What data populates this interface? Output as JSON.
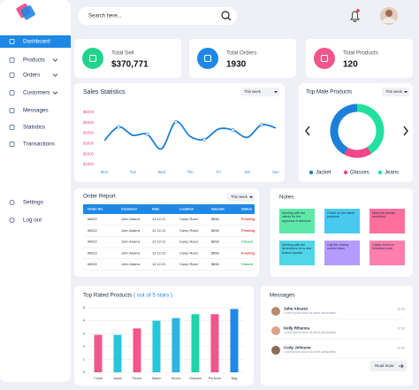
{
  "sidebar": {
    "items": [
      "Dashboard",
      "Products",
      "Orders",
      "Customers",
      "Messages",
      "Statistics",
      "Transactions"
    ],
    "bottom_items": [
      "Settings",
      "Log out"
    ]
  },
  "search_placeholder": "Search here...",
  "stats": [
    {
      "label": "Total Sell",
      "value": "$370,771",
      "color": "#21d48b"
    },
    {
      "label": "Total Orders",
      "value": "1930",
      "color": "#1e88e5"
    },
    {
      "label": "Total Products",
      "value": "120",
      "color": "#f0568c"
    }
  ],
  "sales_chart": {
    "type": "line",
    "title": "Sales  Statistics",
    "period": "This week",
    "categories": [
      "Mon",
      null,
      "Tue",
      null,
      "Wed",
      null,
      "Thu",
      null,
      "Fri",
      null,
      "Sat",
      null,
      "Sun"
    ],
    "values": [
      3300,
      4600,
      3800,
      3900,
      2500,
      5100,
      3700,
      3400,
      4400,
      4300,
      3600,
      4800,
      4500
    ],
    "color": "#1e7fd8",
    "ylim": [
      1000,
      6000
    ],
    "yticks": [
      {
        "value": 6000,
        "label": "$6000"
      },
      {
        "value": 5000,
        "label": "$5000"
      },
      {
        "value": 4000,
        "label": "$4000"
      },
      {
        "value": 3000,
        "label": "$3000"
      },
      {
        "value": 2000,
        "label": "$2000"
      },
      {
        "value": 1000,
        "label": "$1000"
      }
    ],
    "tick_color": "#e8467c",
    "grid": false
  },
  "products_chart": {
    "type": "pie",
    "title": "Top Male Products",
    "period": "This week",
    "categories": [
      "Jacket",
      "Glasses",
      "Jeans"
    ],
    "values": [
      42,
      17,
      41
    ],
    "colors": [
      "#1e7fd8",
      "#f0468a",
      "#21e0a0"
    ],
    "donut": true
  },
  "order_report": {
    "title": "Order Report",
    "period": "This week",
    "columns": [
      "Order No.",
      "Customer",
      "Date",
      "Location",
      "Amount",
      "Status"
    ],
    "rows": [
      [
        "#8522",
        "John Adams",
        "12-12-21",
        "Camp Road",
        "$658",
        "Pending"
      ],
      [
        "#8522",
        "John Adams",
        "12-12-21",
        "Camp Road",
        "$658",
        "Pending"
      ],
      [
        "#8522",
        "John Adams",
        "12-12-21",
        "Camp Road",
        "$658",
        "Closed"
      ],
      [
        "#8522",
        "John Adams",
        "12-12-21",
        "Camp Road",
        "$658",
        "Pending"
      ],
      [
        "#8522",
        "John Adams",
        "12-12-21",
        "Camp Road",
        "$658",
        "Closed"
      ]
    ],
    "status_colors": [
      "#e53935",
      "#e53935",
      "#2eb85c",
      "#e53935",
      "#2eb85c"
    ]
  },
  "notes": {
    "title": "Notes",
    "items": [
      {
        "text": "Meeting with the clients for the approval of directors",
        "color": "#5ee8a8"
      },
      {
        "text": "Check on the latest products",
        "color": "#48c9f0"
      },
      {
        "text": "Meet the weekly workshop",
        "color": "#ff6f9e"
      },
      {
        "text": "Meeting with the developers for a new feature update",
        "color": "#4fd6e8"
      },
      {
        "text": "Call the closing control team",
        "color": "#b49bff"
      },
      {
        "text": "Clarify event on Weekend park",
        "color": "#ff7fae"
      }
    ]
  },
  "rating_chart": {
    "type": "bar",
    "title": "Top Rated Products",
    "subtitle": "( out of 5 stars )",
    "categories": [
      "T-shirt",
      "Jeans",
      "Phone",
      "Watch",
      "Shoes",
      "Glasses",
      "Perfume",
      "Bag"
    ],
    "values": [
      2.9,
      2.9,
      3.4,
      4.0,
      4.2,
      4.5,
      4.5,
      4.9
    ],
    "colors": [
      "#f0568c",
      "#26c6da",
      "#f0568c",
      "#26c6da",
      "#2bb5e0",
      "#1fd3a8",
      "#f0568c",
      "#1e88e5"
    ],
    "ylim": [
      0,
      5
    ],
    "yticks": [
      0,
      1,
      2,
      3,
      4,
      5
    ],
    "grid": true
  },
  "messages": {
    "title": "Messages",
    "items": [
      {
        "name": "John Alvarez",
        "text": "Lorem ipsum dolor sit amet consectetur",
        "time": "12:00"
      },
      {
        "name": "Kelly Rihanna",
        "text": "Lorem ipsum dolor sit amet consectetur",
        "time": "12:00"
      },
      {
        "name": "Cody Johnson",
        "text": "Lorem ipsum dolor sit amet consectetur",
        "time": "12:00"
      }
    ],
    "button": "Read more"
  }
}
